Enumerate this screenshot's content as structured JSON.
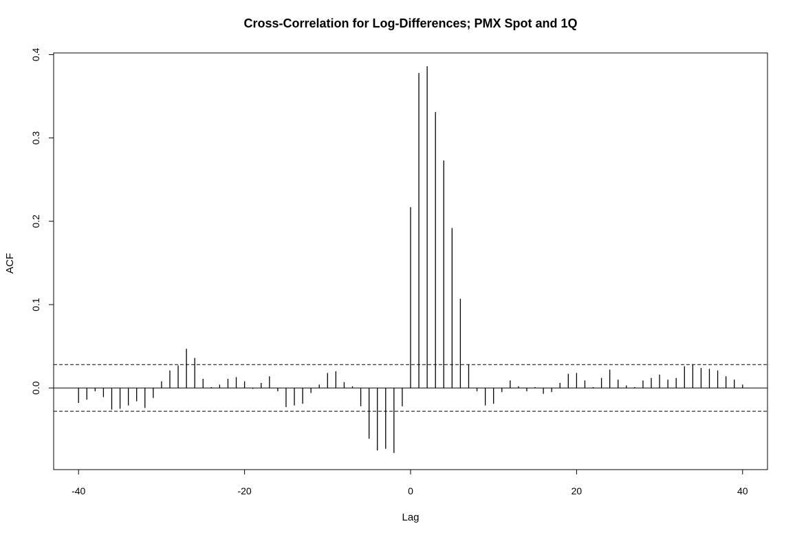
{
  "chart_data": {
    "type": "bar",
    "title": "Cross-Correlation for Log-Differences;  PMX Spot and 1Q",
    "xlabel": "Lag",
    "ylabel": "ACF",
    "xlim": [
      -43,
      43
    ],
    "ylim": [
      -0.098,
      0.402
    ],
    "xticks": [
      -40,
      -20,
      0,
      20,
      40
    ],
    "xtick_labels": [
      "-40",
      "-20",
      "0",
      "20",
      "40"
    ],
    "yticks": [
      0.0,
      0.1,
      0.2,
      0.3,
      0.4
    ],
    "ytick_labels": [
      "0.0",
      "0.1",
      "0.2",
      "0.3",
      "0.4"
    ],
    "confidence_bound": 0.028,
    "grid": false,
    "lags": [
      -40,
      -39,
      -38,
      -37,
      -36,
      -35,
      -34,
      -33,
      -32,
      -31,
      -30,
      -29,
      -28,
      -27,
      -26,
      -25,
      -24,
      -23,
      -22,
      -21,
      -20,
      -19,
      -18,
      -17,
      -16,
      -15,
      -14,
      -13,
      -12,
      -11,
      -10,
      -9,
      -8,
      -7,
      -6,
      -5,
      -4,
      -3,
      -2,
      -1,
      0,
      1,
      2,
      3,
      4,
      5,
      6,
      7,
      8,
      9,
      10,
      11,
      12,
      13,
      14,
      15,
      16,
      17,
      18,
      19,
      20,
      21,
      22,
      23,
      24,
      25,
      26,
      27,
      28,
      29,
      30,
      31,
      32,
      33,
      34,
      35,
      36,
      37,
      38,
      39,
      40
    ],
    "values": [
      -0.018,
      -0.014,
      -0.004,
      -0.011,
      -0.026,
      -0.025,
      -0.021,
      -0.016,
      -0.024,
      -0.012,
      0.008,
      0.021,
      0.027,
      0.047,
      0.036,
      0.011,
      0.001,
      0.004,
      0.011,
      0.013,
      0.008,
      -0.001,
      0.006,
      0.014,
      -0.004,
      -0.023,
      -0.021,
      -0.019,
      -0.006,
      0.004,
      0.018,
      0.02,
      0.007,
      0.002,
      -0.022,
      -0.061,
      -0.075,
      -0.073,
      -0.078,
      -0.022,
      0.217,
      0.378,
      0.386,
      0.331,
      0.273,
      0.192,
      0.107,
      0.028,
      -0.004,
      -0.021,
      -0.019,
      -0.005,
      0.009,
      0.002,
      -0.004,
      0.001,
      -0.007,
      -0.005,
      0.006,
      0.017,
      0.018,
      0.009,
      0.001,
      0.012,
      0.022,
      0.01,
      0.003,
      0.001,
      0.009,
      0.012,
      0.016,
      0.01,
      0.012,
      0.026,
      0.028,
      0.024,
      0.023,
      0.021,
      0.014,
      0.01,
      0.004
    ]
  }
}
